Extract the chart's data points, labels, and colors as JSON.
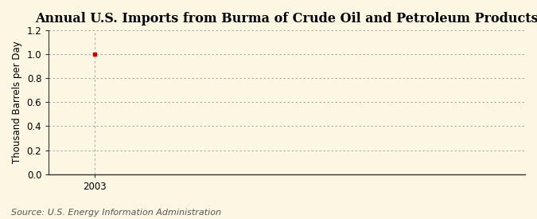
{
  "title": "Annual U.S. Imports from Burma of Crude Oil and Petroleum Products",
  "ylabel": "Thousand Barrels per Day",
  "source_text": "Source: U.S. Energy Information Administration",
  "data_x": [
    2003
  ],
  "data_y": [
    1.0
  ],
  "ylim": [
    0.0,
    1.2
  ],
  "yticks": [
    0.0,
    0.2,
    0.4,
    0.6,
    0.8,
    1.0,
    1.2
  ],
  "xtick_labels": [
    "2003"
  ],
  "xtick_positions": [
    2003
  ],
  "xlim": [
    2002.2,
    2010.5
  ],
  "background_color": "#fdf6e3",
  "plot_bg_color": "#fdf6e3",
  "grid_color": "#999999",
  "vline_color": "#aaaaaa",
  "dot_color": "#cc0000",
  "spine_color": "#333333",
  "title_fontsize": 11.5,
  "label_fontsize": 8.5,
  "tick_fontsize": 8.5,
  "source_fontsize": 8
}
